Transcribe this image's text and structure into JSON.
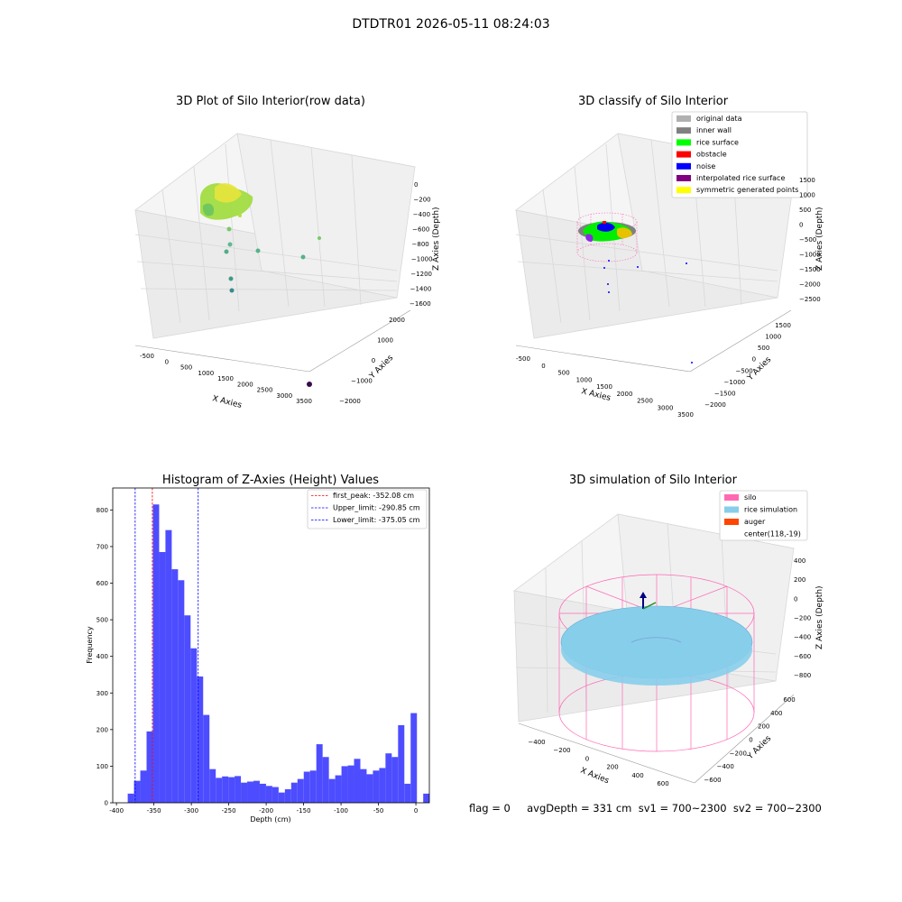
{
  "suptitle": "DTDTR01 2026-05-11 08:24:03",
  "panels": {
    "raw": {
      "title": "3D Plot of Silo Interior(row data)",
      "xlabel": "X Axies",
      "ylabel": "Y Axies",
      "zlabel": "Z Axies (Depth)",
      "xticks": [
        "-500",
        "0",
        "500",
        "1000",
        "1500",
        "2000",
        "2500",
        "3000",
        "3500"
      ],
      "yticks": [
        "2000",
        "1000",
        "0",
        "−1000",
        "−2000"
      ],
      "zticks": [
        "0",
        "−200",
        "−400",
        "−600",
        "−800",
        "−1000",
        "−1200",
        "−1400",
        "−1600"
      ]
    },
    "classify": {
      "title": "3D classify of Silo Interior",
      "xlabel": "X Axies",
      "ylabel": "Y Axies",
      "zlabel": "Z Axies (Depth)",
      "xticks": [
        "-500",
        "0",
        "500",
        "1000",
        "1500",
        "2000",
        "2500",
        "3000",
        "3500"
      ],
      "yticks": [
        "1500",
        "1000",
        "500",
        "0",
        "−500",
        "−1000",
        "−1500",
        "−2000"
      ],
      "zticks": [
        "1500",
        "1000",
        "500",
        "0",
        "−500",
        "−1000",
        "−1500",
        "−2000",
        "−2500"
      ],
      "legend": [
        {
          "label": "original data",
          "color": "#b0b0b0"
        },
        {
          "label": "inner wall",
          "color": "#808080"
        },
        {
          "label": "rice surface",
          "color": "#00ff00"
        },
        {
          "label": "obstacle",
          "color": "#ff0000"
        },
        {
          "label": "noise",
          "color": "#0000ff"
        },
        {
          "label": "interpolated rice surface",
          "color": "#800080"
        },
        {
          "label": "symmetric generated points",
          "color": "#ffff00"
        }
      ]
    },
    "simulation": {
      "title": "3D simulation of Silo Interior",
      "xlabel": "X Axies",
      "ylabel": "Y Axies",
      "zlabel": "Z Axies (Depth)",
      "xticks": [
        "−400",
        "−200",
        "0",
        "200",
        "400",
        "600"
      ],
      "yticks": [
        "600",
        "400",
        "200",
        "0",
        "−200",
        "−400",
        "−600"
      ],
      "zticks": [
        "400",
        "200",
        "0",
        "−200",
        "−400",
        "−600",
        "−800"
      ],
      "legend": [
        {
          "label": "silo",
          "color": "#ff69b4"
        },
        {
          "label": "rice simulation",
          "color": "#87ceeb"
        },
        {
          "label": "auger",
          "color": "#ff4500"
        },
        {
          "label": "center(118,-19)",
          "color": ""
        }
      ]
    }
  },
  "chart_data": {
    "type": "bar",
    "title": "Histogram of Z-Axies (Height) Values",
    "xlabel": "Depth (cm)",
    "ylabel": "Frequency",
    "xlim": [
      -405,
      18
    ],
    "ylim": [
      0,
      860
    ],
    "xticks": [
      -400,
      -350,
      -300,
      -250,
      -200,
      -150,
      -100,
      -50,
      0
    ],
    "yticks": [
      0,
      100,
      200,
      300,
      400,
      500,
      600,
      700,
      800
    ],
    "bin_width": 8.4,
    "bin_start": -385,
    "values": [
      25,
      60,
      88,
      195,
      815,
      685,
      745,
      638,
      608,
      512,
      422,
      345,
      240,
      92,
      68,
      72,
      70,
      73,
      55,
      58,
      60,
      52,
      46,
      43,
      28,
      37,
      55,
      65,
      85,
      88,
      160,
      125,
      65,
      75,
      100,
      102,
      120,
      92,
      78,
      88,
      95,
      135,
      125,
      212,
      52,
      245,
      0,
      25
    ],
    "lines": [
      {
        "label": "first_peak: -352.08 cm",
        "x": -352.08,
        "color": "#ff0000"
      },
      {
        "label": "Upper_limit: -290.85 cm",
        "x": -290.85,
        "color": "#0000ff"
      },
      {
        "label": "Lower_limit: -375.05 cm",
        "x": -375.05,
        "color": "#0000ff"
      }
    ],
    "bar_color": "#4d4dff"
  },
  "footer": {
    "text": "flag = 0     avgDepth = 331 cm  sv1 = 700~2300  sv2 = 700~2300"
  }
}
